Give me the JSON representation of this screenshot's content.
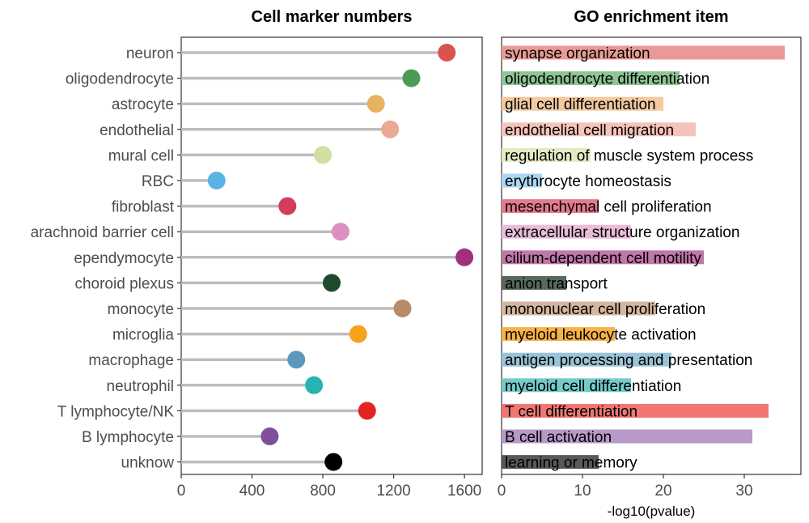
{
  "chart_data": [
    {
      "type": "scatter",
      "subtype": "lollipop",
      "title": "Cell marker numbers",
      "xlabel": "",
      "ylabel": "",
      "xlim": [
        0,
        1700
      ],
      "xticks": [
        0,
        400,
        800,
        1200,
        1600
      ],
      "grid": false,
      "categories": [
        "neuron",
        "oligodendrocyte",
        "astrocyte",
        "endothelial",
        "mural cell",
        "RBC",
        "fibroblast",
        "arachnoid barrier cell",
        "ependymocyte",
        "choroid plexus",
        "monocyte",
        "microglia",
        "macrophage",
        "neutrophil",
        "T lymphocyte/NK",
        "B lymphocyte",
        "unknow"
      ],
      "values": [
        1500,
        1300,
        1100,
        1180,
        800,
        200,
        600,
        900,
        1600,
        850,
        1250,
        1000,
        650,
        750,
        1050,
        500,
        860
      ],
      "colors": [
        "#d9534f",
        "#4c9a55",
        "#e8b262",
        "#eaa995",
        "#cfe0a0",
        "#5ab4e5",
        "#d23c5e",
        "#dc90c2",
        "#a2307f",
        "#1f4a2e",
        "#b98a66",
        "#f7a21b",
        "#5a98bd",
        "#27b3b0",
        "#e32420",
        "#7f4f9e",
        "#000000"
      ]
    },
    {
      "type": "bar",
      "orientation": "horizontal",
      "title": "GO enrichment item",
      "xlabel": "-log10(pvalue)",
      "ylabel": "",
      "xlim": [
        0,
        37
      ],
      "xticks": [
        0,
        10,
        20,
        30
      ],
      "grid": false,
      "categories": [
        "synapse organization",
        "oligodendrocyte differentiation",
        "glial cell differentiation",
        "endothelial cell migration",
        "regulation of muscle system process",
        "erythrocyte homeostasis",
        "mesenchymal cell proliferation",
        "extracellular structure organization",
        "cilium-dependent cell motility",
        "anion transport",
        "mononuclear cell proliferation",
        "myeloid leukocyte activation",
        "antigen processing and presentation",
        "myeloid cell differentiation",
        "T cell differentiation",
        "B cell activation",
        "learning or memory"
      ],
      "values": [
        35,
        22,
        20,
        24,
        11,
        5,
        12,
        16,
        25,
        8,
        19,
        14,
        21,
        16,
        33,
        31,
        12
      ],
      "colors": [
        "#e99a96",
        "#8fc497",
        "#f2c9a0",
        "#f4c3ba",
        "#e4ebc3",
        "#a9d6f2",
        "#e57b8f",
        "#e9bcd9",
        "#c177a7",
        "#57695d",
        "#d4b79e",
        "#f8b145",
        "#9bc3d7",
        "#74cbc8",
        "#ef7673",
        "#b79ac7",
        "#595959"
      ]
    }
  ]
}
